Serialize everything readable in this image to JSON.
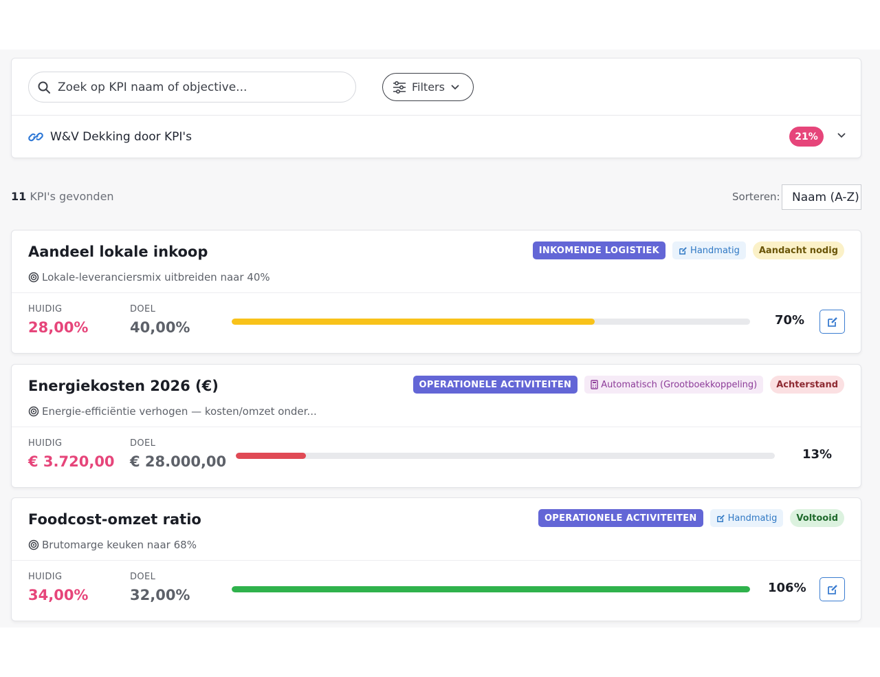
{
  "search": {
    "placeholder": "Zoek op KPI naam of objective..."
  },
  "filters": {
    "label": "Filters"
  },
  "coverage": {
    "label": "W&V Dekking door KPI's",
    "percent": "21%"
  },
  "results": {
    "count": "11",
    "label": " KPI's gevonden"
  },
  "sort": {
    "label": "Sorteren:",
    "value": "Naam (A-Z)"
  },
  "labels": {
    "current": "HUIDIG",
    "goal": "DOEL"
  },
  "colors": {
    "accent_pink": "#e6457a",
    "category": "#6366d6",
    "progress_warn": "#f8c21a",
    "progress_late": "#e04a55",
    "progress_done": "#2fb24c"
  },
  "kpis": [
    {
      "title": "Aandeel lokale inkoop",
      "objective": "Lokale-leveranciersmix uitbreiden naar 40%",
      "category": "INKOMENDE LOGISTIEK",
      "source": "Handmatig",
      "source_icon": "edit-icon",
      "status": "Aandacht nodig",
      "current": "28,00%",
      "goal": "40,00%",
      "percent_label": "70%",
      "progress": 0.7,
      "editable": true
    },
    {
      "title": "Energiekosten 2026 (€)",
      "objective": "Energie-efficiëntie verhogen — kosten/omzet onder...",
      "category": "OPERATIONELE ACTIVITEITEN",
      "source": "Automatisch (Grootboekkoppeling)",
      "source_icon": "calculator-icon",
      "status": "Achterstand",
      "current": "€ 3.720,00",
      "goal": "€ 28.000,00",
      "percent_label": "13%",
      "progress": 0.13,
      "editable": false
    },
    {
      "title": "Foodcost-omzet ratio",
      "objective": "Brutomarge keuken naar 68%",
      "category": "OPERATIONELE ACTIVITEITEN",
      "source": "Handmatig",
      "source_icon": "edit-icon",
      "status": "Voltooid",
      "current": "34,00%",
      "goal": "32,00%",
      "percent_label": "106%",
      "progress": 1.0,
      "editable": true
    }
  ]
}
